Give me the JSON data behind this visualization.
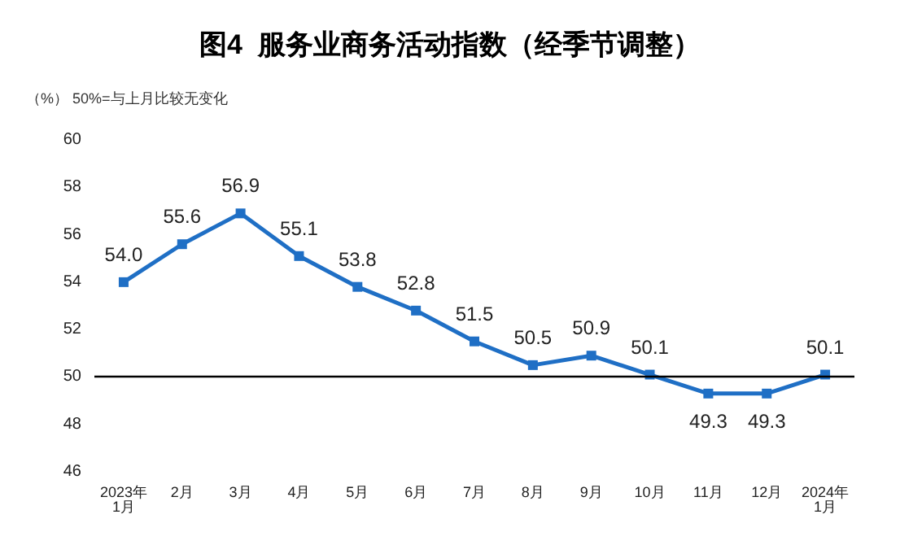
{
  "chart_data": {
    "type": "line",
    "title": "图4  服务业商务活动指数（经季节调整）",
    "annotations": [
      "（%） 50%=与上月比较无变化"
    ],
    "categories": [
      "2023年\n1月",
      "2月",
      "3月",
      "4月",
      "5月",
      "6月",
      "7月",
      "8月",
      "9月",
      "10月",
      "11月",
      "12月",
      "2024年\n1月"
    ],
    "series": [
      {
        "color": "#1f6fc5",
        "values": [
          54.0,
          55.6,
          56.9,
          55.1,
          53.8,
          52.8,
          51.5,
          50.5,
          50.9,
          50.1,
          49.3,
          49.3,
          50.1
        ],
        "value_labels": [
          "54.0",
          "55.6",
          "56.9",
          "55.1",
          "53.8",
          "52.8",
          "51.5",
          "50.5",
          "50.9",
          "50.1",
          "49.3",
          "49.3",
          "50.1"
        ]
      }
    ],
    "ylim": [
      46,
      60
    ],
    "yticks": [
      46,
      48,
      50,
      52,
      54,
      56,
      58,
      60
    ],
    "grid": false,
    "marker": "square",
    "line_style": "solid",
    "ref_lines": [
      {
        "axis": "y",
        "value": 50,
        "color": "#000000"
      }
    ]
  }
}
